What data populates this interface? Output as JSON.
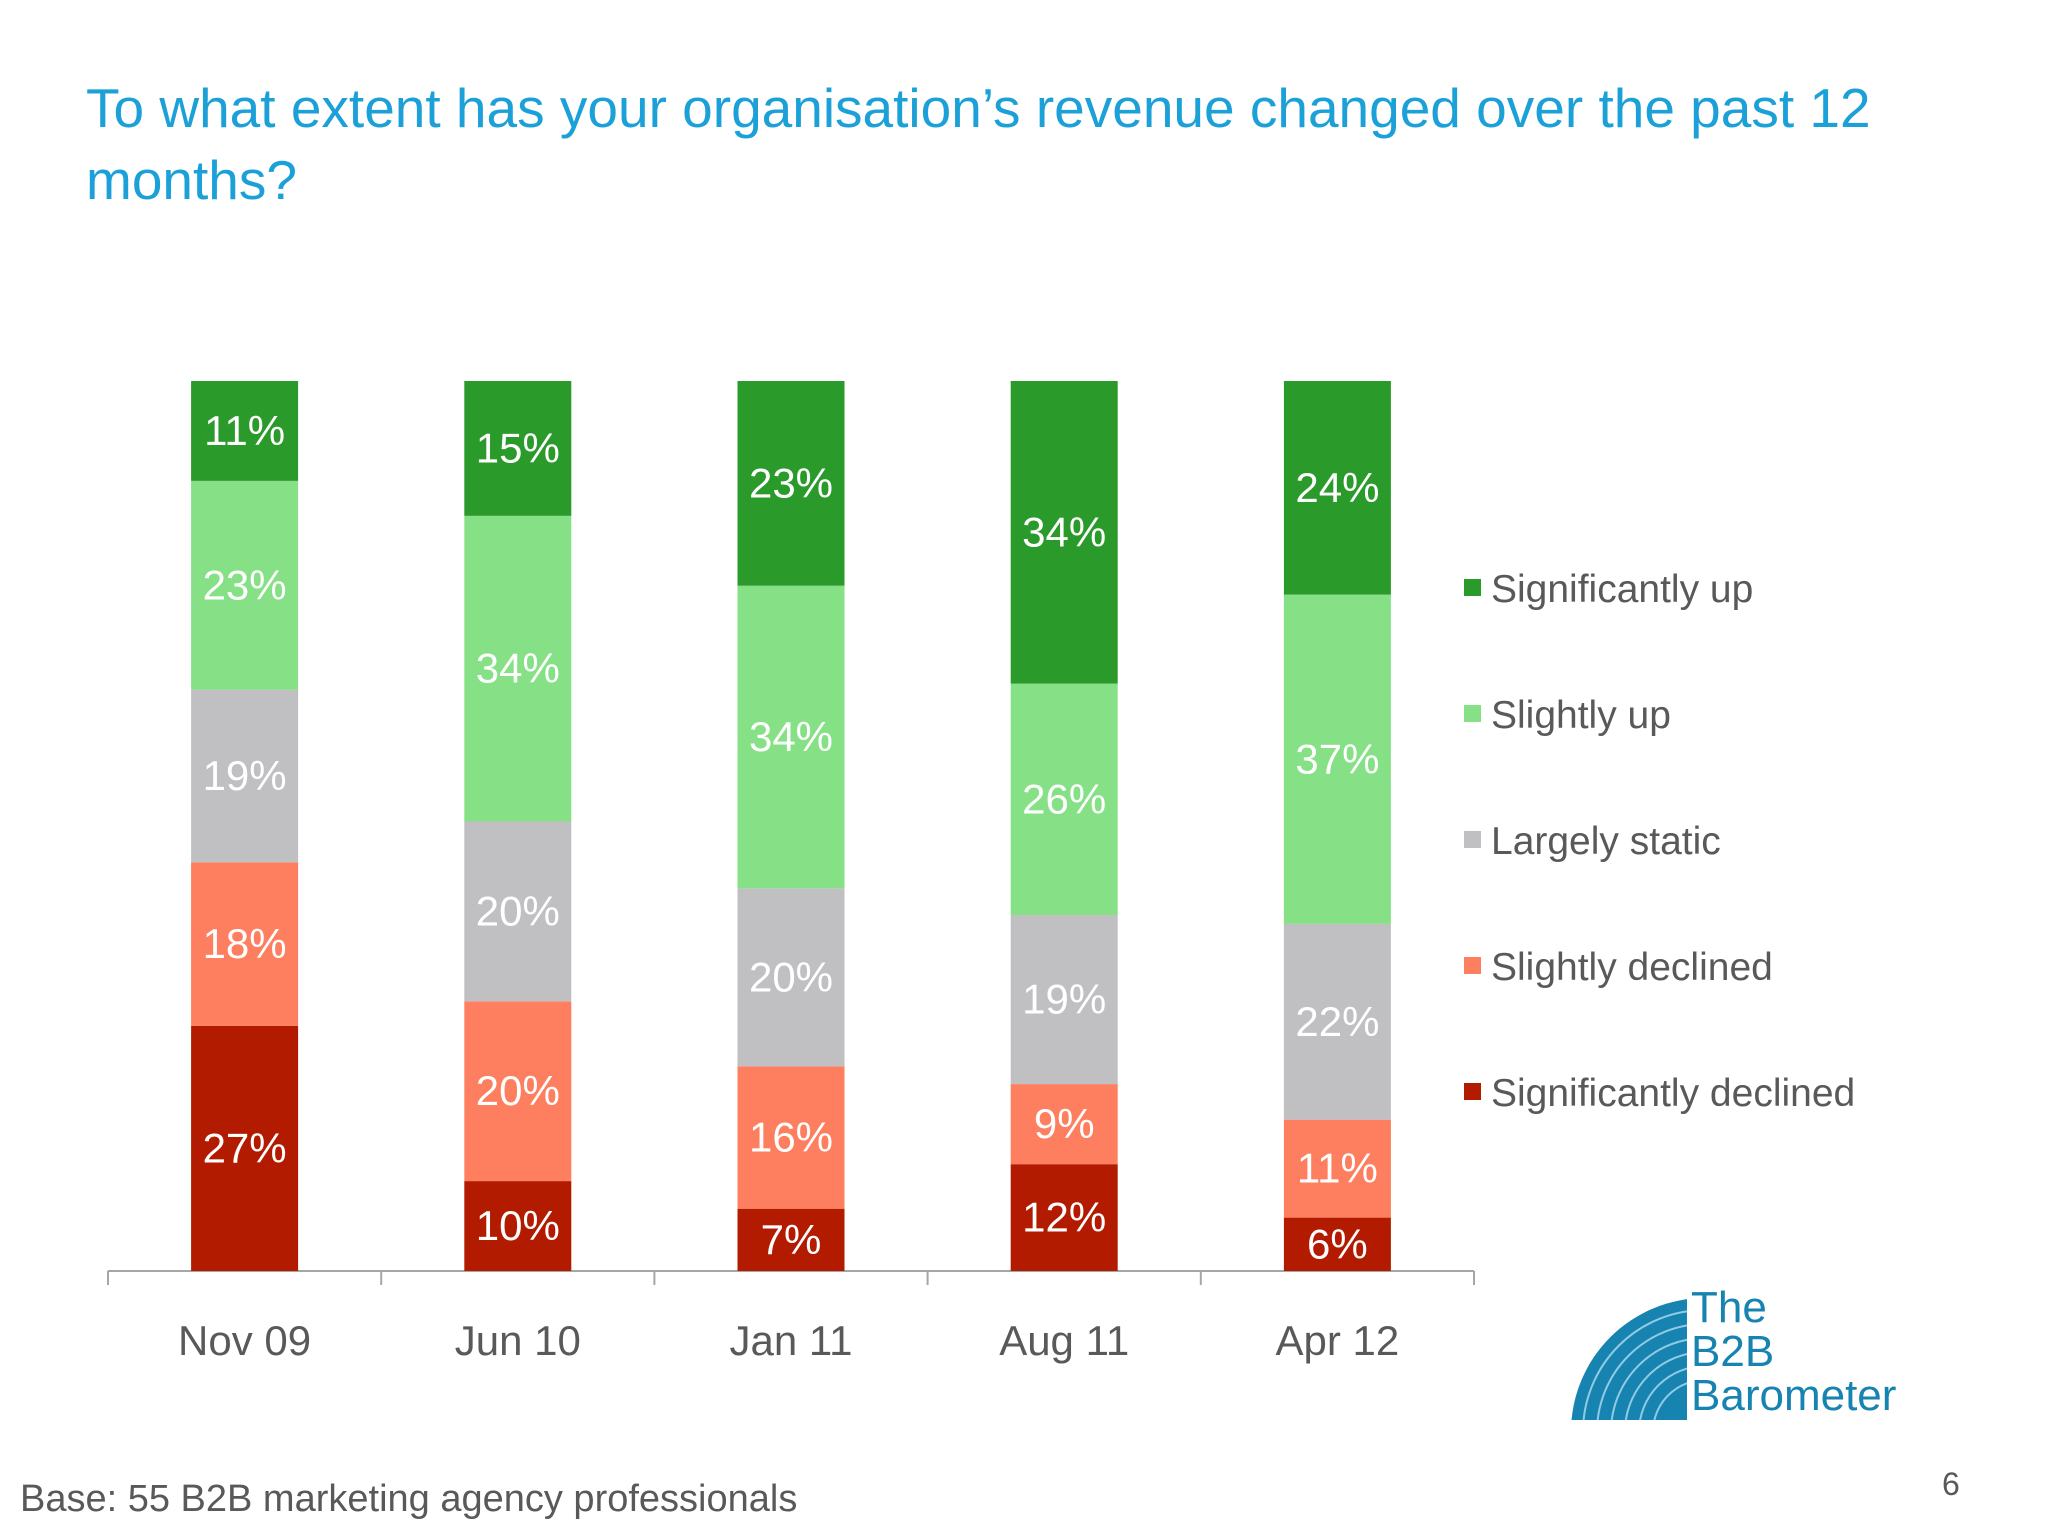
{
  "title": "To what extent has your organisation’s revenue changed over the past 12 months?",
  "footer": {
    "base_note": "Base: 55 B2B marketing agency professionals",
    "page_number": "6"
  },
  "logo": {
    "line1": "The",
    "line2": "B2B",
    "line3": "Barometer"
  },
  "colors": {
    "title": "#1ba0d8",
    "significantly_up": "#2a9a2a",
    "slightly_up": "#86e086",
    "largely_static": "#c0bfc2",
    "slightly_declined": "#fd7f5f",
    "significantly_declined": "#b31b00",
    "logo": "#1683b0"
  },
  "chart_data": {
    "type": "bar",
    "stacked": true,
    "percent_stacked": true,
    "categories": [
      "Nov 09",
      "Jun 10",
      "Jan 11",
      "Aug 11",
      "Apr 12"
    ],
    "series": [
      {
        "name": "Significantly declined",
        "values": [
          27,
          10,
          7,
          12,
          6
        ],
        "labels": [
          "27%",
          "10%",
          "7%",
          "12%",
          "6%"
        ]
      },
      {
        "name": "Slightly declined",
        "values": [
          18,
          20,
          16,
          9,
          11
        ],
        "labels": [
          "18%",
          "20%",
          "16%",
          "9%",
          "11%"
        ]
      },
      {
        "name": "Largely static",
        "values": [
          19,
          20,
          20,
          19,
          22
        ],
        "labels": [
          "19%",
          "20%",
          "20%",
          "19%",
          "22%"
        ]
      },
      {
        "name": "Slightly up",
        "values": [
          23,
          34,
          34,
          26,
          37
        ],
        "labels": [
          "23%",
          "34%",
          "34%",
          "26%",
          "37%"
        ]
      },
      {
        "name": "Significantly up",
        "values": [
          11,
          15,
          23,
          34,
          24
        ],
        "labels": [
          "11%",
          "15%",
          "23%",
          "34%",
          "24%"
        ]
      }
    ],
    "legend": {
      "position": "right",
      "entries": [
        "Significantly up",
        "Slightly up",
        "Largely static",
        "Slightly declined",
        "Significantly declined"
      ]
    },
    "grid": false,
    "y_axis_visible": false
  }
}
